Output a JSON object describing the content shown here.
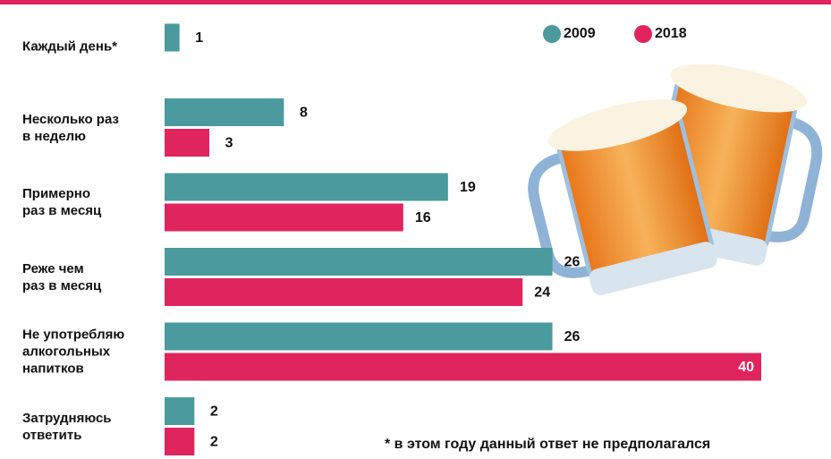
{
  "chart_data": {
    "type": "bar",
    "orientation": "horizontal",
    "categories": [
      "Каждый день*",
      "Несколько раз\nв неделю",
      "Примерно\nраз в месяц",
      "Реже чем\nраз в месяц",
      "Не употребляю\nалкогольных\nнапитков",
      "Затрудняюсь\nответить"
    ],
    "series": [
      {
        "name": "2009",
        "color": "#4a9a9e",
        "values": [
          1,
          8,
          19,
          26,
          26,
          2
        ]
      },
      {
        "name": "2018",
        "color": "#e0245e",
        "values": [
          null,
          3,
          16,
          24,
          40,
          2
        ]
      }
    ],
    "xlim": [
      0,
      40
    ],
    "footnote": "* в этом году данный ответ не предполагался"
  }
}
